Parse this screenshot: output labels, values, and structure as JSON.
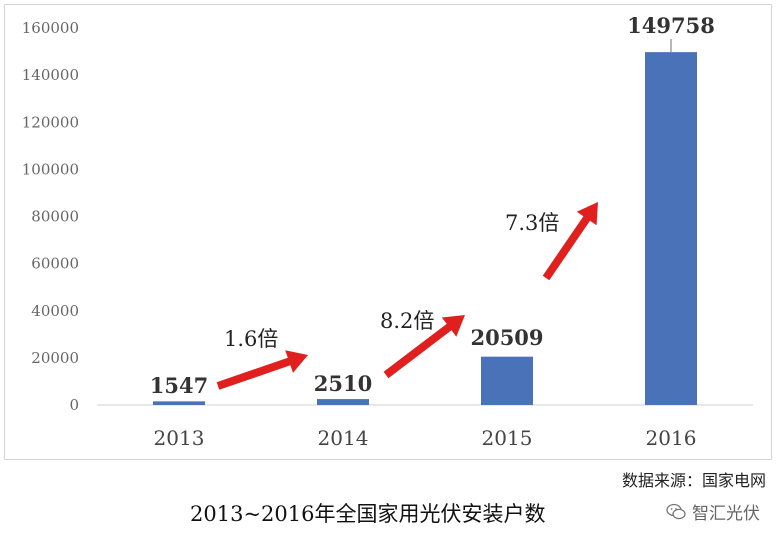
{
  "chart_data": {
    "type": "bar",
    "categories": [
      "2013",
      "2014",
      "2015",
      "2016"
    ],
    "values": [
      1547,
      2510,
      20509,
      149758
    ],
    "data_labels": [
      "1547",
      "2510",
      "20509",
      "149758"
    ],
    "yticks": [
      "0",
      "20000",
      "40000",
      "60000",
      "80000",
      "100000",
      "120000",
      "140000",
      "160000"
    ],
    "ylim": [
      0,
      160000
    ],
    "bar_color": "#4a72b8",
    "arrow_color": "#e0201e",
    "annotations": [
      "1.6倍",
      "8.2倍",
      "7.3倍"
    ],
    "grid": false,
    "legend": "none"
  },
  "source": "数据来源：国家电网",
  "caption": "2013~2016年全国家用光伏安装户数",
  "watermark": "智汇光伏"
}
